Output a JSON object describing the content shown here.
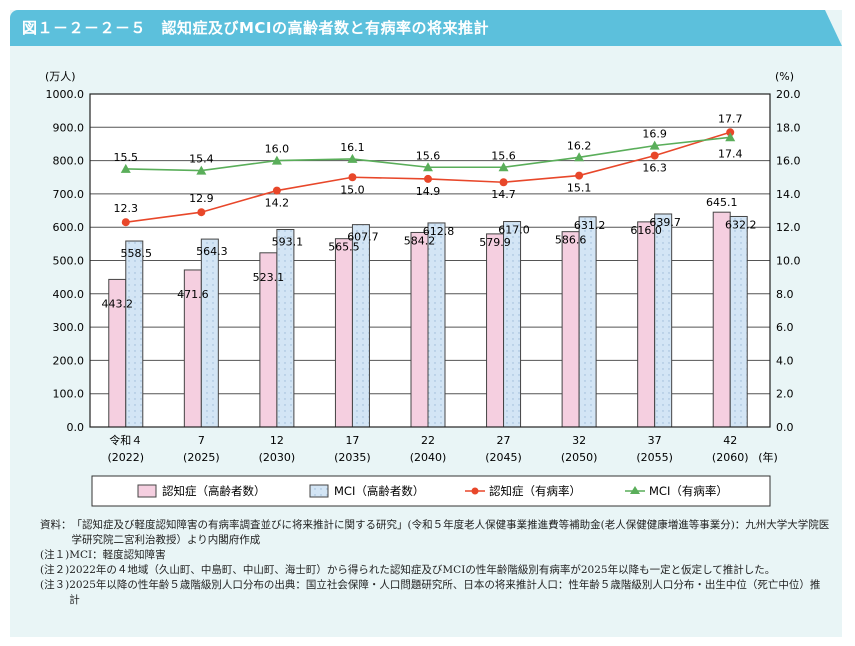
{
  "title": "図１－２－２－５　認知症及びMCIの高齢者数と有病率の将来推計",
  "chart_data": {
    "type": "bar+line",
    "categories": [
      [
        "令和４",
        "(2022)"
      ],
      [
        "7",
        "(2025)"
      ],
      [
        "12",
        "(2030)"
      ],
      [
        "17",
        "(2035)"
      ],
      [
        "22",
        "(2040)"
      ],
      [
        "27",
        "(2045)"
      ],
      [
        "32",
        "(2050)"
      ],
      [
        "37",
        "(2055)"
      ],
      [
        "42",
        "(2060)"
      ]
    ],
    "x_unit": "(年)",
    "y_left": {
      "label": "(万人)",
      "lim": [
        0,
        1000
      ],
      "ticks": [
        "0.0",
        "100.0",
        "200.0",
        "300.0",
        "400.0",
        "500.0",
        "600.0",
        "700.0",
        "800.0",
        "900.0",
        "1000.0"
      ]
    },
    "y_right": {
      "label": "(%)",
      "lim": [
        0,
        20
      ],
      "ticks": [
        "0.0",
        "2.0",
        "4.0",
        "6.0",
        "8.0",
        "10.0",
        "12.0",
        "14.0",
        "16.0",
        "18.0",
        "20.0"
      ]
    },
    "grid": true,
    "legend_placement": "bottom",
    "series": [
      {
        "name": "認知症（高齢者数）",
        "kind": "bar",
        "axis": "left",
        "color": "#f5cfe0",
        "values": [
          443.2,
          471.6,
          523.1,
          565.5,
          584.2,
          579.9,
          586.6,
          616.0,
          645.1
        ]
      },
      {
        "name": "MCI（高齢者数）",
        "kind": "bar",
        "axis": "left",
        "color": "#d3e5f5",
        "values": [
          558.5,
          564.3,
          593.1,
          607.7,
          612.8,
          617.0,
          631.2,
          639.7,
          632.2
        ]
      },
      {
        "name": "認知症（有病率）",
        "kind": "line",
        "axis": "right",
        "color": "#e8472a",
        "marker": "circle",
        "values": [
          12.3,
          12.9,
          14.2,
          15.0,
          14.9,
          14.7,
          15.1,
          16.3,
          17.7
        ]
      },
      {
        "name": "MCI（有病率）",
        "kind": "line",
        "axis": "right",
        "color": "#5aae5a",
        "marker": "triangle",
        "values": [
          15.5,
          15.4,
          16.0,
          16.1,
          15.6,
          15.6,
          16.2,
          16.9,
          17.4
        ]
      }
    ]
  },
  "notes": [
    {
      "label": "資料：",
      "text": "「認知症及び軽度認知障害の有病率調査並びに将来推計に関する研究」(令和５年度老人保健事業推進費等補助金(老人保健健康増進等事業分)：九州大学大学院医学研究院二宮利治教授）より内閣府作成"
    },
    {
      "label": "(注１)",
      "text": "MCI：軽度認知障害"
    },
    {
      "label": "(注２)",
      "text": "2022年の４地域（久山町、中島町、中山町、海士町）から得られた認知症及びMCIの性年齢階級別有病率が2025年以降も一定と仮定して推計した。"
    },
    {
      "label": "(注３)",
      "text": "2025年以降の性年齢５歳階級別人口分布の出典：国立社会保障・人口問題研究所、日本の将来推計人口：性年齢５歳階級別人口分布・出生中位（死亡中位）推計"
    }
  ]
}
